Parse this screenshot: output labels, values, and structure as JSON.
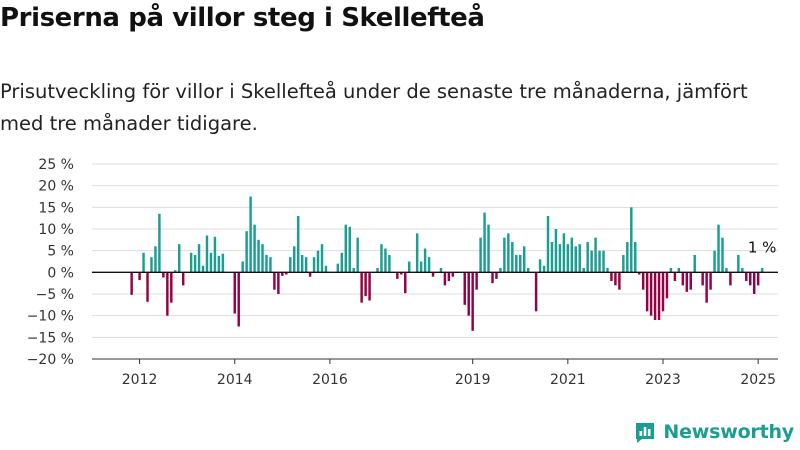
{
  "title": "Priserna på villor steg i Skellefteå",
  "subtitle": "Prisutveckling för villor i Skellefteå under de senaste tre månaderna, jämfört med tre månader tidigare.",
  "brand": {
    "name": "Newsworthy",
    "icon": "chart-bars-icon"
  },
  "colors": {
    "positive": "#1a9e92",
    "negative": "#980046",
    "grid": "#dddddd",
    "zero": "#111111"
  },
  "chart_data": {
    "type": "bar",
    "title": "",
    "xlabel": "",
    "ylabel": "",
    "ylim": [
      -20,
      25
    ],
    "yticks": [
      25,
      20,
      15,
      10,
      5,
      0,
      -5,
      -10,
      -15,
      -20
    ],
    "ytick_labels": [
      "25 %",
      "20 %",
      "15 %",
      "10 %",
      "5 %",
      "0 %",
      "−5 %",
      "−10 %",
      "−15 %",
      "−20 %"
    ],
    "xtick_labels": [
      "2012",
      "2014",
      "2016",
      "2019",
      "2021",
      "2023",
      "2025"
    ],
    "xticks": [
      "2012-01",
      "2014-01",
      "2016-01",
      "2019-01",
      "2021-01",
      "2023-01",
      "2025-01"
    ],
    "x_start": "2011-01",
    "x_end": "2025-06",
    "grid": true,
    "annotation": {
      "text": "1 %",
      "x": "2025-01"
    },
    "series": [
      {
        "values": [
          [
            "2011-11",
            -5.2
          ],
          [
            "2012-01",
            -1.8
          ],
          [
            "2012-02",
            4.5
          ],
          [
            "2012-03",
            -6.8
          ],
          [
            "2012-04",
            3.5
          ],
          [
            "2012-05",
            6.0
          ],
          [
            "2012-06",
            13.5
          ],
          [
            "2012-07",
            -1.2
          ],
          [
            "2012-08",
            -10.0
          ],
          [
            "2012-09",
            -7.0
          ],
          [
            "2012-10",
            0.5
          ],
          [
            "2012-11",
            6.5
          ],
          [
            "2012-12",
            -3.0
          ],
          [
            "2013-02",
            4.5
          ],
          [
            "2013-03",
            4.0
          ],
          [
            "2013-04",
            6.5
          ],
          [
            "2013-05",
            1.5
          ],
          [
            "2013-06",
            8.5
          ],
          [
            "2013-07",
            4.5
          ],
          [
            "2013-08",
            8.2
          ],
          [
            "2013-09",
            3.8
          ],
          [
            "2013-10",
            4.3
          ],
          [
            "2014-01",
            -9.5
          ],
          [
            "2014-02",
            -12.5
          ],
          [
            "2014-03",
            2.5
          ],
          [
            "2014-04",
            9.5
          ],
          [
            "2014-05",
            17.5
          ],
          [
            "2014-06",
            11.0
          ],
          [
            "2014-07",
            7.5
          ],
          [
            "2014-08",
            6.5
          ],
          [
            "2014-09",
            4.0
          ],
          [
            "2014-10",
            3.5
          ],
          [
            "2014-11",
            -4.0
          ],
          [
            "2014-12",
            -5.0
          ],
          [
            "2015-01",
            -0.8
          ],
          [
            "2015-02",
            -0.5
          ],
          [
            "2015-03",
            3.5
          ],
          [
            "2015-04",
            6.0
          ],
          [
            "2015-05",
            13.0
          ],
          [
            "2015-06",
            4.0
          ],
          [
            "2015-07",
            3.5
          ],
          [
            "2015-08",
            -1.0
          ],
          [
            "2015-09",
            3.5
          ],
          [
            "2015-10",
            5.0
          ],
          [
            "2015-11",
            6.5
          ],
          [
            "2015-12",
            1.5
          ],
          [
            "2016-03",
            2.0
          ],
          [
            "2016-04",
            4.5
          ],
          [
            "2016-05",
            11.0
          ],
          [
            "2016-06",
            10.5
          ],
          [
            "2016-07",
            1.0
          ],
          [
            "2016-08",
            8.0
          ],
          [
            "2016-09",
            -7.0
          ],
          [
            "2016-10",
            -5.5
          ],
          [
            "2016-11",
            -6.5
          ],
          [
            "2017-01",
            1.0
          ],
          [
            "2017-02",
            6.5
          ],
          [
            "2017-03",
            5.5
          ],
          [
            "2017-04",
            4.0
          ],
          [
            "2017-06",
            -1.5
          ],
          [
            "2017-07",
            -0.5
          ],
          [
            "2017-08",
            -4.8
          ],
          [
            "2017-09",
            2.5
          ],
          [
            "2017-11",
            9.0
          ],
          [
            "2017-12",
            2.5
          ],
          [
            "2018-01",
            5.5
          ],
          [
            "2018-02",
            3.5
          ],
          [
            "2018-03",
            -1.0
          ],
          [
            "2018-05",
            1.0
          ],
          [
            "2018-06",
            -3.0
          ],
          [
            "2018-07",
            -2.0
          ],
          [
            "2018-08",
            -1.0
          ],
          [
            "2018-11",
            -7.5
          ],
          [
            "2018-12",
            -10.0
          ],
          [
            "2019-01",
            -13.5
          ],
          [
            "2019-02",
            -4.0
          ],
          [
            "2019-03",
            8.0
          ],
          [
            "2019-04",
            13.8
          ],
          [
            "2019-05",
            11.0
          ],
          [
            "2019-06",
            -2.5
          ],
          [
            "2019-07",
            -1.5
          ],
          [
            "2019-08",
            1.0
          ],
          [
            "2019-09",
            8.0
          ],
          [
            "2019-10",
            9.0
          ],
          [
            "2019-11",
            7.0
          ],
          [
            "2019-12",
            4.0
          ],
          [
            "2020-01",
            4.0
          ],
          [
            "2020-02",
            6.0
          ],
          [
            "2020-03",
            1.0
          ],
          [
            "2020-05",
            -9.0
          ],
          [
            "2020-06",
            3.0
          ],
          [
            "2020-07",
            1.5
          ],
          [
            "2020-08",
            13.0
          ],
          [
            "2020-09",
            7.0
          ],
          [
            "2020-10",
            10.0
          ],
          [
            "2020-11",
            6.5
          ],
          [
            "2020-12",
            9.0
          ],
          [
            "2021-01",
            6.5
          ],
          [
            "2021-02",
            8.0
          ],
          [
            "2021-03",
            6.0
          ],
          [
            "2021-04",
            6.5
          ],
          [
            "2021-05",
            1.0
          ],
          [
            "2021-06",
            7.0
          ],
          [
            "2021-07",
            5.0
          ],
          [
            "2021-08",
            8.0
          ],
          [
            "2021-09",
            5.0
          ],
          [
            "2021-10",
            5.0
          ],
          [
            "2021-11",
            1.0
          ],
          [
            "2021-12",
            -2.0
          ],
          [
            "2022-01",
            -3.0
          ],
          [
            "2022-02",
            -4.0
          ],
          [
            "2022-03",
            4.0
          ],
          [
            "2022-04",
            7.0
          ],
          [
            "2022-05",
            15.0
          ],
          [
            "2022-06",
            7.0
          ],
          [
            "2022-07",
            -0.5
          ],
          [
            "2022-08",
            -4.0
          ],
          [
            "2022-09",
            -9.0
          ],
          [
            "2022-10",
            -10.0
          ],
          [
            "2022-11",
            -11.0
          ],
          [
            "2022-12",
            -11.0
          ],
          [
            "2023-01",
            -9.0
          ],
          [
            "2023-02",
            -6.0
          ],
          [
            "2023-03",
            1.0
          ],
          [
            "2023-04",
            -2.0
          ],
          [
            "2023-05",
            1.0
          ],
          [
            "2023-06",
            -3.0
          ],
          [
            "2023-07",
            -4.5
          ],
          [
            "2023-08",
            -4.0
          ],
          [
            "2023-09",
            4.0
          ],
          [
            "2023-11",
            -3.0
          ],
          [
            "2023-12",
            -7.0
          ],
          [
            "2024-01",
            -4.0
          ],
          [
            "2024-02",
            5.0
          ],
          [
            "2024-03",
            11.0
          ],
          [
            "2024-04",
            8.0
          ],
          [
            "2024-05",
            1.0
          ],
          [
            "2024-06",
            -3.0
          ],
          [
            "2024-08",
            4.0
          ],
          [
            "2024-09",
            1.0
          ],
          [
            "2024-10",
            -2.0
          ],
          [
            "2024-11",
            -3.0
          ],
          [
            "2024-12",
            -5.0
          ],
          [
            "2025-01",
            -3.0
          ],
          [
            "2025-02",
            1.0
          ]
        ]
      }
    ]
  }
}
